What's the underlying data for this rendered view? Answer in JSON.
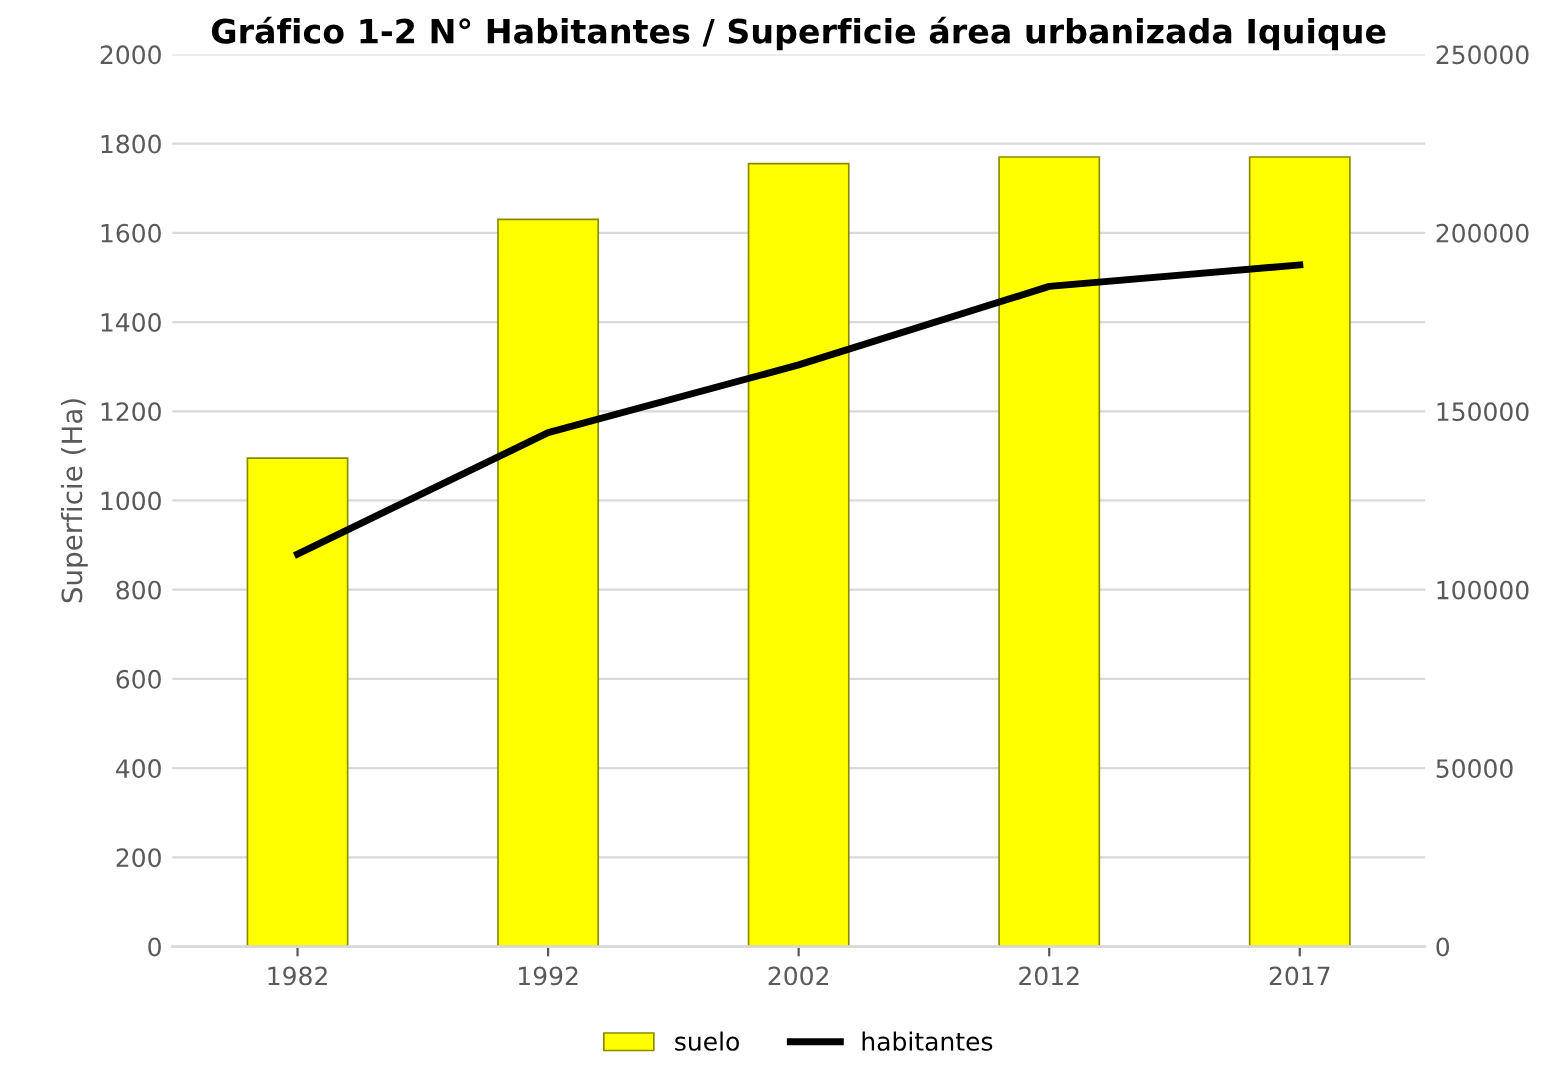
{
  "chart_data": {
    "type": "bar",
    "title": "Gráfico 1-2 N° Habitantes / Superficie área urbanizada Iquique",
    "ylabel": "Superficie (Ha)",
    "categories": [
      "1982",
      "1992",
      "2002",
      "2012",
      "2017"
    ],
    "series": [
      {
        "name": "suelo",
        "color": "#ffff00",
        "values": [
          1095,
          1630,
          1755,
          1770,
          1770
        ]
      },
      {
        "name": "habitantes",
        "type": "line",
        "axis": "y2",
        "color": "#000000",
        "values": [
          110000,
          144000,
          163000,
          185000,
          191000
        ]
      }
    ],
    "ylim": [
      0,
      2000
    ],
    "yticks": [
      0,
      200,
      400,
      600,
      800,
      1000,
      1200,
      1400,
      1600,
      1800,
      2000
    ],
    "y2lim": [
      0,
      250000
    ],
    "y2ticks": [
      0,
      50000,
      100000,
      150000,
      200000,
      250000
    ],
    "grid": "y",
    "legend": "bottom",
    "marker": "none",
    "line_style": "solid"
  }
}
